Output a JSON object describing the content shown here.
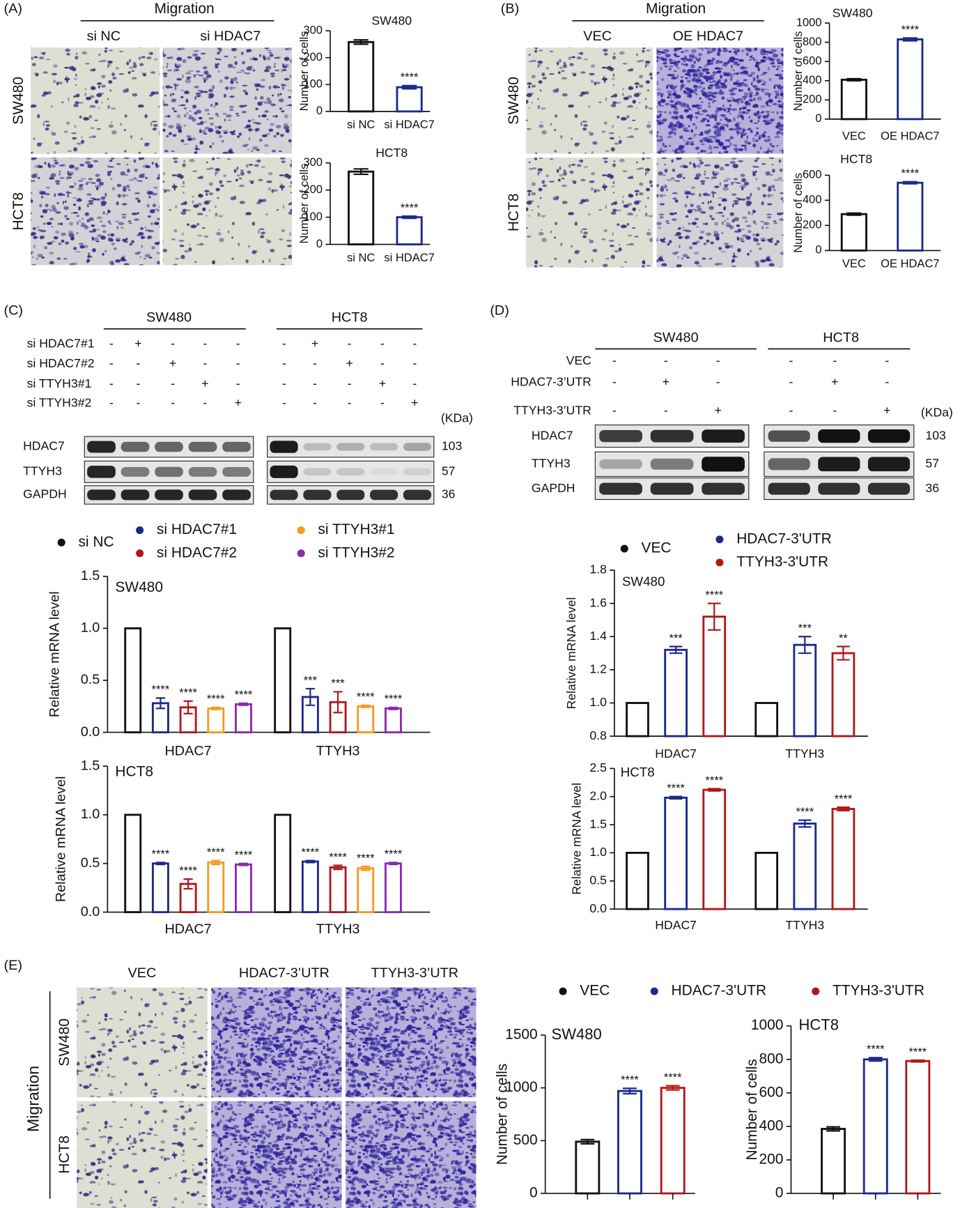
{
  "figure": {
    "panel_labels": [
      "(A)",
      "(B)",
      "(C)",
      "(D)",
      "(E)"
    ],
    "panel_a": {
      "heading": "Migration",
      "columns": [
        "si NC",
        "si HDAC7"
      ],
      "rows": [
        "SW480",
        "HCT8"
      ]
    },
    "panel_b": {
      "heading": "Migration",
      "columns": [
        "VEC",
        "OE HDAC7"
      ],
      "rows": [
        "SW480",
        "HCT8"
      ]
    },
    "panel_c_blot": {
      "cell_lines": [
        "SW480",
        "HCT8"
      ],
      "conditions": [
        {
          "label": "si HDAC7#1",
          "marks": [
            "-",
            "+",
            "-",
            "-",
            "-",
            "-",
            "+",
            "-",
            "-",
            "-"
          ]
        },
        {
          "label": "si HDAC7#2",
          "marks": [
            "-",
            "-",
            "+",
            "-",
            "-",
            "-",
            "-",
            "+",
            "-",
            "-"
          ]
        },
        {
          "label": "si TTYH3#1",
          "marks": [
            "-",
            "-",
            "-",
            "+",
            "-",
            "-",
            "-",
            "-",
            "+",
            "-"
          ]
        },
        {
          "label": "si TTYH3#2",
          "marks": [
            "-",
            "-",
            "-",
            "-",
            "+",
            "-",
            "-",
            "-",
            "-",
            "+"
          ]
        }
      ],
      "unit": "(KDa)",
      "proteins": [
        {
          "name": "HDAC7",
          "kda": 103
        },
        {
          "name": "TTYH3",
          "kda": 57
        },
        {
          "name": "GAPDH",
          "kda": 36
        }
      ]
    },
    "panel_d_blot": {
      "cell_lines": [
        "SW480",
        "HCT8"
      ],
      "conditions": [
        {
          "label": "VEC",
          "marks": [
            "-",
            "-",
            "-",
            "-",
            "-",
            "-"
          ]
        },
        {
          "label": "HDAC7-3’UTR",
          "marks": [
            "-",
            "+",
            "-",
            "-",
            "+",
            "-"
          ]
        },
        {
          "label": "TTYH3-3’UTR",
          "marks": [
            "-",
            "-",
            "+",
            "-",
            "-",
            "+"
          ]
        }
      ],
      "unit": "(KDa)",
      "proteins": [
        {
          "name": "HDAC7",
          "kda": 103
        },
        {
          "name": "TTYH3",
          "kda": 57
        },
        {
          "name": "GAPDH",
          "kda": 36
        }
      ]
    },
    "panel_e": {
      "columns": [
        "VEC",
        "HDAC7-3’UTR",
        "TTYH3-3’UTR"
      ],
      "rows": [
        "SW480",
        "HCT8"
      ],
      "side_label": "Migration",
      "legend": [
        {
          "name": "VEC",
          "color": "#111111"
        },
        {
          "name": "HDAC7-3'UTR",
          "color": "#1c2a8c"
        },
        {
          "name": "TTYH3-3'UTR",
          "color": "#b01818"
        }
      ]
    }
  },
  "chart_data": [
    {
      "type": "bar",
      "title": "SW480",
      "ylabel": "Number of cells",
      "categories": [
        "si NC",
        "si HDAC7"
      ],
      "values": [
        258,
        90
      ],
      "errors": [
        8,
        6
      ],
      "colors": [
        "#111111",
        "#1c2a8c"
      ],
      "annotations": [
        null,
        "****"
      ],
      "ylim": [
        0,
        300
      ],
      "yticks": [
        0,
        100,
        200,
        300
      ]
    },
    {
      "type": "bar",
      "title": "HCT8",
      "ylabel": "Number of cells",
      "categories": [
        "si NC",
        "si HDAC7"
      ],
      "values": [
        268,
        100
      ],
      "errors": [
        10,
        4
      ],
      "colors": [
        "#111111",
        "#1c2a8c"
      ],
      "annotations": [
        null,
        "****"
      ],
      "ylim": [
        0,
        300
      ],
      "yticks": [
        0,
        100,
        200,
        300
      ]
    },
    {
      "type": "bar",
      "title": "SW480",
      "ylabel": "Number of cells",
      "categories": [
        "VEC",
        "OE HDAC7"
      ],
      "values": [
        410,
        830
      ],
      "errors": [
        10,
        15
      ],
      "colors": [
        "#111111",
        "#1c2a8c"
      ],
      "annotations": [
        null,
        "****"
      ],
      "ylim": [
        0,
        1000
      ],
      "yticks": [
        0,
        200,
        400,
        600,
        800,
        1000
      ]
    },
    {
      "type": "bar",
      "title": "HCT8",
      "ylabel": "Number of cells",
      "categories": [
        "VEC",
        "OE HDAC7"
      ],
      "values": [
        290,
        540
      ],
      "errors": [
        8,
        8
      ],
      "colors": [
        "#111111",
        "#1c2a8c"
      ],
      "annotations": [
        null,
        "****"
      ],
      "ylim": [
        0,
        600
      ],
      "yticks": [
        0,
        200,
        400,
        600
      ]
    },
    {
      "type": "grouped_bar",
      "title": "SW480",
      "ylabel": "Relative mRNA level",
      "categories": [
        "HDAC7",
        "TTYH3"
      ],
      "series": [
        {
          "name": "si NC",
          "color": "#111111",
          "values": [
            1,
            1
          ],
          "errors": [
            0,
            0
          ],
          "annotations": [
            null,
            null
          ]
        },
        {
          "name": "si HDAC7#1",
          "color": "#1c2a8c",
          "values": [
            0.28,
            0.34
          ],
          "errors": [
            0.05,
            0.08
          ],
          "annotations": [
            "****",
            "***"
          ]
        },
        {
          "name": "si HDAC7#2",
          "color": "#b01818",
          "values": [
            0.24,
            0.29
          ],
          "errors": [
            0.06,
            0.1
          ],
          "annotations": [
            "****",
            "***"
          ]
        },
        {
          "name": "si TTYH3#1",
          "color": "#f59a23",
          "values": [
            0.23,
            0.25
          ],
          "errors": [
            0.01,
            0.01
          ],
          "annotations": [
            "****",
            "****"
          ]
        },
        {
          "name": "si TTYH3#2",
          "color": "#8a2bb0",
          "values": [
            0.27,
            0.23
          ],
          "errors": [
            0.01,
            0.01
          ],
          "annotations": [
            "****",
            "****"
          ]
        }
      ],
      "ylim": [
        0,
        1.5
      ],
      "yticks": [
        {
          "value": 0,
          "label": "0.0"
        },
        0.5,
        {
          "value": 1,
          "label": "1.0"
        },
        1.5
      ]
    },
    {
      "type": "grouped_bar",
      "title": "HCT8",
      "ylabel": "Relative mRNA level",
      "categories": [
        "HDAC7",
        "TTYH3"
      ],
      "series": [
        {
          "color": "#111111",
          "values": [
            1,
            1
          ],
          "errors": [
            0,
            0
          ],
          "annotations": [
            null,
            null
          ]
        },
        {
          "color": "#1c2a8c",
          "values": [
            0.5,
            0.52
          ],
          "errors": [
            0.01,
            0.01
          ],
          "annotations": [
            "****",
            "****"
          ]
        },
        {
          "color": "#b01818",
          "values": [
            0.29,
            0.46
          ],
          "errors": [
            0.05,
            0.02
          ],
          "annotations": [
            "****",
            "****"
          ]
        },
        {
          "color": "#f59a23",
          "values": [
            0.51,
            0.45
          ],
          "errors": [
            0.02,
            0.02
          ],
          "annotations": [
            "****",
            "****"
          ]
        },
        {
          "color": "#8a2bb0",
          "values": [
            0.49,
            0.5
          ],
          "errors": [
            0.01,
            0.01
          ],
          "annotations": [
            "****",
            "****"
          ]
        }
      ],
      "ylim": [
        0,
        1.5
      ],
      "yticks": [
        {
          "value": 0,
          "label": "0.0"
        },
        0.5,
        {
          "value": 1,
          "label": "1.0"
        },
        1.5
      ]
    },
    {
      "type": "grouped_bar",
      "title": "SW480",
      "ylabel": "Relative mRNA level",
      "categories": [
        "HDAC7",
        "TTYH3"
      ],
      "series": [
        {
          "name": "VEC",
          "color": "#111111",
          "values": [
            1,
            1
          ],
          "errors": [
            0,
            0
          ],
          "annotations": [
            null,
            null
          ]
        },
        {
          "name": "HDAC7-3'UTR",
          "color": "#1c2a8c",
          "values": [
            1.32,
            1.35
          ],
          "errors": [
            0.02,
            0.05
          ],
          "annotations": [
            "***",
            "***"
          ]
        },
        {
          "name": "TTYH3-3'UTR",
          "color": "#b01818",
          "values": [
            1.52,
            1.3
          ],
          "errors": [
            0.08,
            0.04
          ],
          "annotations": [
            "****",
            "**"
          ]
        }
      ],
      "ylim": [
        0.8,
        1.8
      ],
      "yticks": [
        0.8,
        {
          "value": 1,
          "label": "1.0"
        },
        1.2,
        1.4,
        1.6,
        1.8
      ]
    },
    {
      "type": "grouped_bar",
      "title": "HCT8",
      "ylabel": "Relative mRNA level",
      "categories": [
        "HDAC7",
        "TTYH3"
      ],
      "series": [
        {
          "color": "#111111",
          "values": [
            1,
            1
          ],
          "errors": [
            0,
            0
          ],
          "annotations": [
            null,
            null
          ]
        },
        {
          "color": "#1c2a8c",
          "values": [
            1.98,
            1.52
          ],
          "errors": [
            0.02,
            0.06
          ],
          "annotations": [
            "****",
            "****"
          ]
        },
        {
          "color": "#b01818",
          "values": [
            2.12,
            1.78
          ],
          "errors": [
            0.02,
            0.03
          ],
          "annotations": [
            "****",
            "****"
          ]
        }
      ],
      "ylim": [
        0,
        2.5
      ],
      "yticks": [
        {
          "value": 0,
          "label": "0.0"
        },
        0.5,
        {
          "value": 1,
          "label": "1.0"
        },
        1.5,
        {
          "value": 2,
          "label": "2.0"
        },
        2.5
      ]
    },
    {
      "type": "bar",
      "title": "SW480",
      "ylabel": "Number of cells",
      "categories": [
        null,
        null,
        null
      ],
      "values": [
        490,
        970,
        1000
      ],
      "errors": [
        20,
        25,
        20
      ],
      "colors": [
        "#111111",
        "#1c2a8c",
        "#b01818"
      ],
      "annotations": [
        null,
        "****",
        "****"
      ],
      "ylim": [
        0,
        1500
      ],
      "yticks": [
        0,
        500,
        1000,
        1500
      ]
    },
    {
      "type": "bar",
      "title": "HCT8",
      "ylabel": "Number of cells",
      "categories": [
        null,
        null,
        null
      ],
      "values": [
        385,
        800,
        790
      ],
      "errors": [
        12,
        10,
        5
      ],
      "colors": [
        "#111111",
        "#1c2a8c",
        "#b01818"
      ],
      "annotations": [
        null,
        "****",
        "****"
      ],
      "ylim": [
        0,
        1000
      ],
      "yticks": [
        0,
        200,
        400,
        600,
        800,
        1000
      ]
    }
  ]
}
